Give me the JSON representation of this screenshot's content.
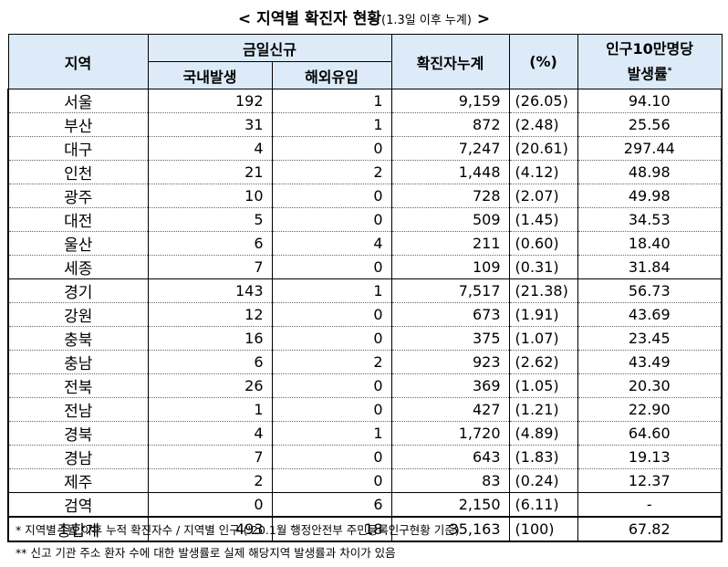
{
  "title": {
    "prefix": "<",
    "main": "지역별 확진자 현황",
    "sub": "(1.3일 이후 누계)",
    "suffix": ">"
  },
  "table": {
    "headers": {
      "region": "지역",
      "new_today": "금일신규",
      "domestic": "국내발생",
      "overseas": "해외유입",
      "cumulative": "확진자누계",
      "percent": "(%)",
      "rate_line1": "인구10만명당",
      "rate_line2": "발생률",
      "rate_mark": "*"
    },
    "rows": [
      {
        "region": "서울",
        "domestic": "192",
        "overseas": "1",
        "cumulative": "9,159",
        "percent": "(26.05)",
        "rate": "94.10"
      },
      {
        "region": "부산",
        "domestic": "31",
        "overseas": "1",
        "cumulative": "872",
        "percent": "(2.48)",
        "rate": "25.56"
      },
      {
        "region": "대구",
        "domestic": "4",
        "overseas": "0",
        "cumulative": "7,247",
        "percent": "(20.61)",
        "rate": "297.44"
      },
      {
        "region": "인천",
        "domestic": "21",
        "overseas": "2",
        "cumulative": "1,448",
        "percent": "(4.12)",
        "rate": "48.98"
      },
      {
        "region": "광주",
        "domestic": "10",
        "overseas": "0",
        "cumulative": "728",
        "percent": "(2.07)",
        "rate": "49.98"
      },
      {
        "region": "대전",
        "domestic": "5",
        "overseas": "0",
        "cumulative": "509",
        "percent": "(1.45)",
        "rate": "34.53"
      },
      {
        "region": "울산",
        "domestic": "6",
        "overseas": "4",
        "cumulative": "211",
        "percent": "(0.60)",
        "rate": "18.40"
      },
      {
        "region": "세종",
        "domestic": "7",
        "overseas": "0",
        "cumulative": "109",
        "percent": "(0.31)",
        "rate": "31.84"
      },
      {
        "region": "경기",
        "domestic": "143",
        "overseas": "1",
        "cumulative": "7,517",
        "percent": "(21.38)",
        "rate": "56.73"
      },
      {
        "region": "강원",
        "domestic": "12",
        "overseas": "0",
        "cumulative": "673",
        "percent": "(1.91)",
        "rate": "43.69"
      },
      {
        "region": "충북",
        "domestic": "16",
        "overseas": "0",
        "cumulative": "375",
        "percent": "(1.07)",
        "rate": "23.45"
      },
      {
        "region": "충남",
        "domestic": "6",
        "overseas": "2",
        "cumulative": "923",
        "percent": "(2.62)",
        "rate": "43.49"
      },
      {
        "region": "전북",
        "domestic": "26",
        "overseas": "0",
        "cumulative": "369",
        "percent": "(1.05)",
        "rate": "20.30"
      },
      {
        "region": "전남",
        "domestic": "1",
        "overseas": "0",
        "cumulative": "427",
        "percent": "(1.21)",
        "rate": "22.90"
      },
      {
        "region": "경북",
        "domestic": "4",
        "overseas": "1",
        "cumulative": "1,720",
        "percent": "(4.89)",
        "rate": "64.60"
      },
      {
        "region": "경남",
        "domestic": "7",
        "overseas": "0",
        "cumulative": "643",
        "percent": "(1.83)",
        "rate": "19.13"
      },
      {
        "region": "제주",
        "domestic": "2",
        "overseas": "0",
        "cumulative": "83",
        "percent": "(0.24)",
        "rate": "12.37"
      },
      {
        "region": "검역",
        "domestic": "0",
        "overseas": "6",
        "cumulative": "2,150",
        "percent": "(6.11)",
        "rate": "-"
      }
    ],
    "total": {
      "region": "총합계",
      "domestic": "493",
      "overseas": "18",
      "cumulative": "35,163",
      "percent": "(100)",
      "rate": "67.82"
    }
  },
  "notes": [
    "* 지역별 1월 이후 누적 확진자수 / 지역별 인구 ('20.1월 행정안전부 주민등록인구현황 기준)",
    "** 신고 기관 주소 환자 수에 대한 발생률로 실제 해당지역 발생률과 차이가 있음"
  ],
  "colors": {
    "header_bg": "#dcebf7",
    "border": "#000000"
  }
}
